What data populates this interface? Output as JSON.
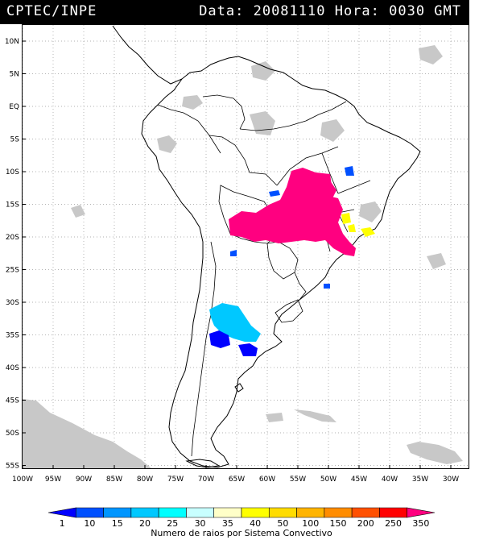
{
  "header": {
    "left": "CPTEC/INPE",
    "right": "Data: 20081110 Hora: 0030 GMT"
  },
  "axes": {
    "lat_labels": [
      "10N",
      "5N",
      "EQ",
      "5S",
      "10S",
      "15S",
      "20S",
      "25S",
      "30S",
      "35S",
      "40S",
      "45S",
      "50S",
      "55S"
    ],
    "lon_labels": [
      "100W",
      "95W",
      "90W",
      "85W",
      "80W",
      "75W",
      "70W",
      "65W",
      "60W",
      "55W",
      "50W",
      "45W",
      "40W",
      "35W",
      "30W"
    ],
    "lat_range": [
      -56,
      12
    ],
    "lon_range": [
      -100,
      -27
    ]
  },
  "colorbar": {
    "labels": [
      "1",
      "10",
      "15",
      "20",
      "25",
      "30",
      "35",
      "40",
      "50",
      "100",
      "150",
      "200",
      "250",
      "350"
    ],
    "colors": [
      "#0000ff",
      "#0050ff",
      "#0096ff",
      "#00c8ff",
      "#00ffff",
      "#c8ffff",
      "#ffffc8",
      "#ffff00",
      "#ffdc00",
      "#ffb400",
      "#ff8c00",
      "#ff5000",
      "#ff0000",
      "#ff0080"
    ],
    "caption": "Numero de raios por Sistema Convectivo"
  },
  "colors": {
    "cloud_gray": "#c8c8c8",
    "coastline": "#000000",
    "grid": "#999999"
  }
}
